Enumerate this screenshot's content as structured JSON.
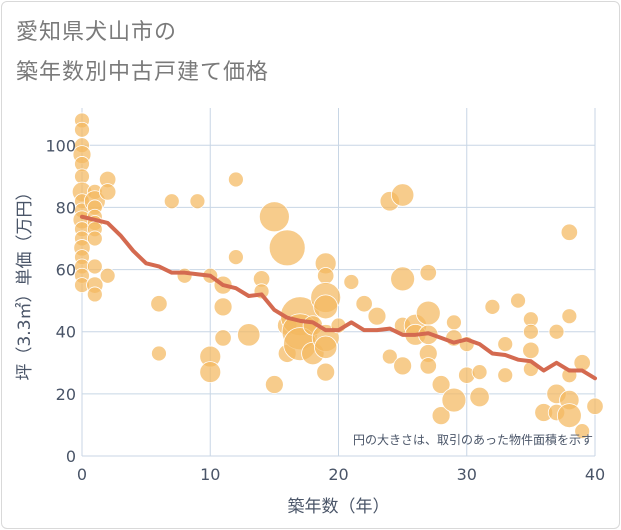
{
  "title_line1": "愛知県犬山市の",
  "title_line2": "築年数別中古戸建て価格",
  "colors": {
    "bubble": "#f4b860",
    "line": "#d46a50",
    "grid": "#c8d6e5",
    "axis_text": "#4a5568",
    "plot_bg": "#ffffff"
  },
  "chart_data": {
    "type": "scatter",
    "xlabel": "築年数（年）",
    "ylabel": "坪（3.3㎡）単価（万円）",
    "xlim": [
      0,
      40
    ],
    "ylim": [
      0,
      112
    ],
    "xticks": [
      0,
      10,
      20,
      30,
      40
    ],
    "yticks": [
      0,
      20,
      40,
      60,
      80,
      100
    ],
    "grid": true,
    "note": "円の大きさは、取引のあった物件面積を示す",
    "bubbles": [
      {
        "x": 0,
        "y": 108,
        "s": 1
      },
      {
        "x": 0,
        "y": 105,
        "s": 1
      },
      {
        "x": 0,
        "y": 100,
        "s": 1
      },
      {
        "x": 0,
        "y": 97,
        "s": 1.2
      },
      {
        "x": 0,
        "y": 94,
        "s": 1
      },
      {
        "x": 0,
        "y": 90,
        "s": 1
      },
      {
        "x": 0,
        "y": 85,
        "s": 1.3
      },
      {
        "x": 0,
        "y": 82,
        "s": 1
      },
      {
        "x": 0,
        "y": 79,
        "s": 1
      },
      {
        "x": 0,
        "y": 76,
        "s": 1.2
      },
      {
        "x": 0,
        "y": 73,
        "s": 1
      },
      {
        "x": 0,
        "y": 70,
        "s": 1
      },
      {
        "x": 0,
        "y": 67,
        "s": 1.1
      },
      {
        "x": 0,
        "y": 64,
        "s": 1
      },
      {
        "x": 0,
        "y": 61,
        "s": 1
      },
      {
        "x": 0,
        "y": 58,
        "s": 1
      },
      {
        "x": 0,
        "y": 55,
        "s": 1
      },
      {
        "x": 1,
        "y": 85,
        "s": 1
      },
      {
        "x": 1,
        "y": 82,
        "s": 1.4
      },
      {
        "x": 1,
        "y": 80,
        "s": 1
      },
      {
        "x": 1,
        "y": 77,
        "s": 1
      },
      {
        "x": 1,
        "y": 75,
        "s": 1
      },
      {
        "x": 1,
        "y": 73,
        "s": 1
      },
      {
        "x": 1,
        "y": 70,
        "s": 1
      },
      {
        "x": 1,
        "y": 61,
        "s": 1
      },
      {
        "x": 1,
        "y": 55,
        "s": 1.1
      },
      {
        "x": 1,
        "y": 52,
        "s": 1
      },
      {
        "x": 2,
        "y": 89,
        "s": 1.1
      },
      {
        "x": 2,
        "y": 85,
        "s": 1.1
      },
      {
        "x": 2,
        "y": 58,
        "s": 1
      },
      {
        "x": 6,
        "y": 49,
        "s": 1.1
      },
      {
        "x": 6,
        "y": 33,
        "s": 1
      },
      {
        "x": 7,
        "y": 82,
        "s": 1
      },
      {
        "x": 8,
        "y": 58,
        "s": 1
      },
      {
        "x": 9,
        "y": 82,
        "s": 1
      },
      {
        "x": 10,
        "y": 58,
        "s": 1
      },
      {
        "x": 10,
        "y": 32,
        "s": 1.4
      },
      {
        "x": 10,
        "y": 27,
        "s": 1.4
      },
      {
        "x": 11,
        "y": 55,
        "s": 1.2
      },
      {
        "x": 11,
        "y": 48,
        "s": 1.2
      },
      {
        "x": 11,
        "y": 38,
        "s": 1.1
      },
      {
        "x": 12,
        "y": 89,
        "s": 1
      },
      {
        "x": 12,
        "y": 64,
        "s": 1
      },
      {
        "x": 13,
        "y": 39,
        "s": 1.5
      },
      {
        "x": 14,
        "y": 57,
        "s": 1.1
      },
      {
        "x": 14,
        "y": 53,
        "s": 1
      },
      {
        "x": 15,
        "y": 77,
        "s": 2.0
      },
      {
        "x": 15,
        "y": 23,
        "s": 1.2
      },
      {
        "x": 16,
        "y": 67,
        "s": 2.4
      },
      {
        "x": 16,
        "y": 42,
        "s": 1.3
      },
      {
        "x": 16,
        "y": 33,
        "s": 1.2
      },
      {
        "x": 17,
        "y": 45,
        "s": 2.6
      },
      {
        "x": 17,
        "y": 40,
        "s": 2.4
      },
      {
        "x": 17,
        "y": 36,
        "s": 2.2
      },
      {
        "x": 18,
        "y": 33,
        "s": 1.5
      },
      {
        "x": 18,
        "y": 42,
        "s": 1.3
      },
      {
        "x": 19,
        "y": 62,
        "s": 1.4
      },
      {
        "x": 19,
        "y": 58,
        "s": 1.1
      },
      {
        "x": 19,
        "y": 51,
        "s": 2.0
      },
      {
        "x": 19,
        "y": 48,
        "s": 1.6
      },
      {
        "x": 19,
        "y": 38,
        "s": 1.8
      },
      {
        "x": 19,
        "y": 35,
        "s": 1.5
      },
      {
        "x": 19,
        "y": 27,
        "s": 1.2
      },
      {
        "x": 20,
        "y": 42,
        "s": 1
      },
      {
        "x": 21,
        "y": 56,
        "s": 1
      },
      {
        "x": 22,
        "y": 49,
        "s": 1.1
      },
      {
        "x": 23,
        "y": 45,
        "s": 1.2
      },
      {
        "x": 24,
        "y": 82,
        "s": 1.3
      },
      {
        "x": 24,
        "y": 32,
        "s": 1
      },
      {
        "x": 25,
        "y": 84,
        "s": 1.5
      },
      {
        "x": 25,
        "y": 57,
        "s": 1.6
      },
      {
        "x": 25,
        "y": 42,
        "s": 1.1
      },
      {
        "x": 25,
        "y": 29,
        "s": 1.2
      },
      {
        "x": 26,
        "y": 42,
        "s": 1.5
      },
      {
        "x": 26,
        "y": 39,
        "s": 1.4
      },
      {
        "x": 27,
        "y": 59,
        "s": 1.1
      },
      {
        "x": 27,
        "y": 46,
        "s": 1.6
      },
      {
        "x": 27,
        "y": 39,
        "s": 1.3
      },
      {
        "x": 27,
        "y": 33,
        "s": 1.2
      },
      {
        "x": 27,
        "y": 29,
        "s": 1.1
      },
      {
        "x": 28,
        "y": 23,
        "s": 1.2
      },
      {
        "x": 28,
        "y": 13,
        "s": 1.2
      },
      {
        "x": 29,
        "y": 43,
        "s": 1
      },
      {
        "x": 29,
        "y": 38,
        "s": 1.1
      },
      {
        "x": 29,
        "y": 18,
        "s": 1.6
      },
      {
        "x": 30,
        "y": 36,
        "s": 1
      },
      {
        "x": 30,
        "y": 26,
        "s": 1.1
      },
      {
        "x": 31,
        "y": 27,
        "s": 1
      },
      {
        "x": 31,
        "y": 19,
        "s": 1.3
      },
      {
        "x": 32,
        "y": 48,
        "s": 1
      },
      {
        "x": 33,
        "y": 36,
        "s": 1
      },
      {
        "x": 33,
        "y": 26,
        "s": 1
      },
      {
        "x": 34,
        "y": 50,
        "s": 1
      },
      {
        "x": 35,
        "y": 44,
        "s": 1
      },
      {
        "x": 35,
        "y": 40,
        "s": 1
      },
      {
        "x": 35,
        "y": 34,
        "s": 1.1
      },
      {
        "x": 35,
        "y": 28,
        "s": 1
      },
      {
        "x": 36,
        "y": 14,
        "s": 1.2
      },
      {
        "x": 37,
        "y": 40,
        "s": 1
      },
      {
        "x": 37,
        "y": 20,
        "s": 1.3
      },
      {
        "x": 37,
        "y": 14,
        "s": 1.1
      },
      {
        "x": 38,
        "y": 72,
        "s": 1.1
      },
      {
        "x": 38,
        "y": 45,
        "s": 1
      },
      {
        "x": 38,
        "y": 26,
        "s": 1
      },
      {
        "x": 38,
        "y": 18,
        "s": 1.3
      },
      {
        "x": 38,
        "y": 13,
        "s": 1.6
      },
      {
        "x": 39,
        "y": 30,
        "s": 1.1
      },
      {
        "x": 39,
        "y": 8,
        "s": 1
      },
      {
        "x": 40,
        "y": 16,
        "s": 1.1
      }
    ],
    "series": [
      {
        "x": [
          0,
          1,
          2,
          3,
          4,
          5,
          6,
          7,
          8,
          9,
          10,
          11,
          12,
          13,
          14,
          15,
          16,
          17,
          18,
          19,
          20,
          21,
          22,
          23,
          24,
          25,
          26,
          27,
          28,
          29,
          30,
          31,
          32,
          33,
          34,
          35,
          36,
          37,
          38,
          39,
          40
        ],
        "y": [
          77,
          76,
          75,
          71,
          66,
          62,
          61,
          59,
          59,
          58.5,
          58,
          55,
          54,
          51.5,
          52,
          47,
          44.5,
          43.5,
          43,
          40.5,
          40.5,
          43,
          40.5,
          40.5,
          41,
          39,
          39,
          39.5,
          38,
          36.5,
          37.5,
          36,
          33,
          32.5,
          31,
          30.5,
          27.5,
          30,
          27.5,
          27.5,
          25
        ]
      }
    ]
  }
}
